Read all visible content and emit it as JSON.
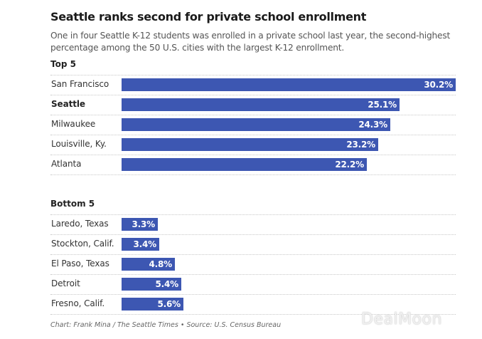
{
  "header": {
    "title": "Seattle ranks second for private school enrollment",
    "subtitle": "One in four Seattle K-12 students was enrolled in a private school last year, the second-highest percentage among the 50 U.S. cities with the largest K-12 enrollment."
  },
  "footer": {
    "credit": "Chart: Frank Mina / The Seattle Times • Source: U.S. Census Bureau",
    "watermark": "DealMoon"
  },
  "colors": {
    "bar": "#3d57b2",
    "bar_label": "#ffffff"
  },
  "chart_data": {
    "type": "bar",
    "orientation": "horizontal",
    "title": "Seattle ranks second for private school enrollment",
    "xlabel": "",
    "ylabel": "",
    "unit": "%",
    "xlim": [
      0,
      30.2
    ],
    "grid": false,
    "groups": [
      {
        "label": "Top 5",
        "categories": [
          "San Francisco",
          "Seattle",
          "Milwaukee",
          "Louisville, Ky.",
          "Atlanta"
        ],
        "values": [
          30.2,
          25.1,
          24.3,
          23.2,
          22.2
        ],
        "value_labels": [
          "30.2%",
          "25.1%",
          "24.3%",
          "23.2%",
          "22.2%"
        ],
        "highlight": "Seattle"
      },
      {
        "label": "Bottom 5",
        "categories": [
          "Laredo, Texas",
          "Stockton, Calif.",
          "El Paso, Texas",
          "Detroit",
          "Fresno, Calif."
        ],
        "values": [
          3.3,
          3.4,
          4.8,
          5.4,
          5.6
        ],
        "value_labels": [
          "3.3%",
          "3.4%",
          "4.8%",
          "5.4%",
          "5.6%"
        ],
        "highlight": null
      }
    ]
  }
}
